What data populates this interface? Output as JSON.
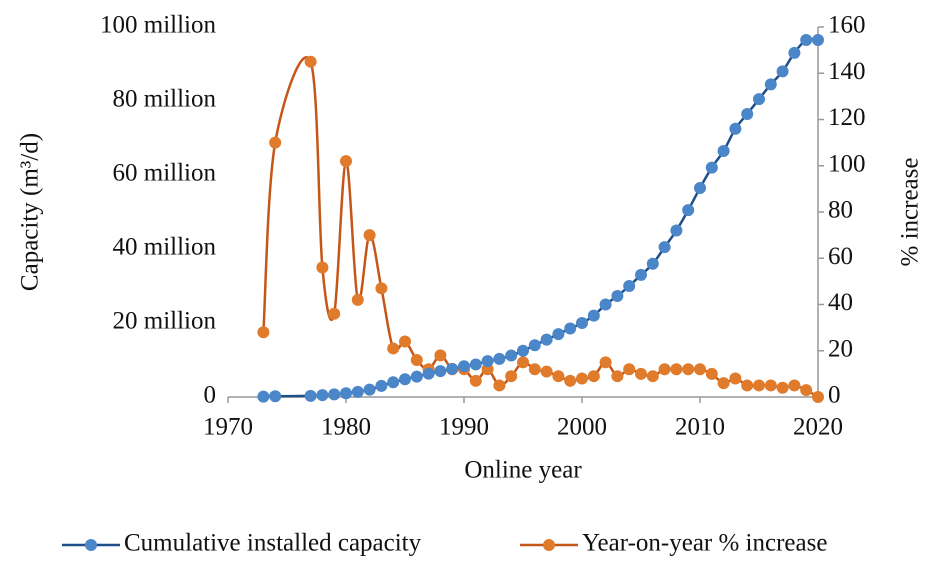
{
  "chart_data": {
    "type": "line",
    "x_label": "Online year",
    "y_label": "Capacity (m³/d)",
    "y2_label": "% increase",
    "x": [
      1973,
      1974,
      1977,
      1978,
      1979,
      1980,
      1981,
      1982,
      1983,
      1984,
      1985,
      1986,
      1987,
      1988,
      1989,
      1990,
      1991,
      1992,
      1993,
      1994,
      1995,
      1996,
      1997,
      1998,
      1999,
      2000,
      2001,
      2002,
      2003,
      2004,
      2005,
      2006,
      2007,
      2008,
      2009,
      2010,
      2011,
      2012,
      2013,
      2014,
      2015,
      2016,
      2017,
      2018,
      2019,
      2020
    ],
    "series": [
      {
        "name": "Cumulative installed capacity",
        "color": "#4a86c8",
        "line_color": "#1f4e89",
        "axis": "y",
        "values": [
          100000,
          200000,
          300000,
          500000,
          700000,
          1000000,
          1400000,
          2000000,
          3000000,
          4000000,
          4800000,
          5500000,
          6300000,
          7000000,
          7600000,
          8300000,
          8800000,
          9700000,
          10300000,
          11200000,
          12500000,
          14000000,
          15500000,
          17000000,
          18500000,
          20000000,
          22000000,
          25000000,
          27300000,
          30000000,
          33000000,
          36000000,
          40500000,
          45000000,
          50500000,
          56500000,
          62000000,
          66500000,
          72500000,
          76500000,
          80500000,
          84500000,
          88000000,
          93000000,
          96500000,
          96500000
        ]
      },
      {
        "name": "Year-on-year % increase",
        "color": "#e07b2c",
        "line_color": "#c5561a",
        "axis": "y2",
        "values": [
          28,
          110,
          145,
          56,
          36,
          102,
          42,
          70,
          47,
          21,
          24,
          16,
          12,
          18,
          12,
          12,
          7,
          12,
          5,
          9,
          15,
          12,
          11,
          9,
          7,
          8,
          9,
          15,
          9,
          12,
          10,
          9,
          12,
          12,
          12,
          12,
          10,
          6,
          8,
          5,
          5,
          5,
          4,
          5,
          3,
          0
        ]
      }
    ],
    "xlim": [
      1970,
      2020
    ],
    "xticks": [
      1970,
      1980,
      1990,
      2000,
      2010,
      2020
    ],
    "ylim": [
      0,
      100000000
    ],
    "yticks": [
      0,
      {
        "value": 20000000,
        "label": "20 million"
      },
      {
        "value": 40000000,
        "label": "40 million"
      },
      {
        "value": 60000000,
        "label": "60 million"
      },
      {
        "value": 80000000,
        "label": "80 million"
      },
      {
        "value": 100000000,
        "label": "100 million"
      }
    ],
    "y2lim": [
      0,
      160
    ],
    "y2ticks": [
      0,
      20,
      40,
      60,
      80,
      100,
      120,
      140,
      160
    ],
    "legend": "bottom"
  }
}
